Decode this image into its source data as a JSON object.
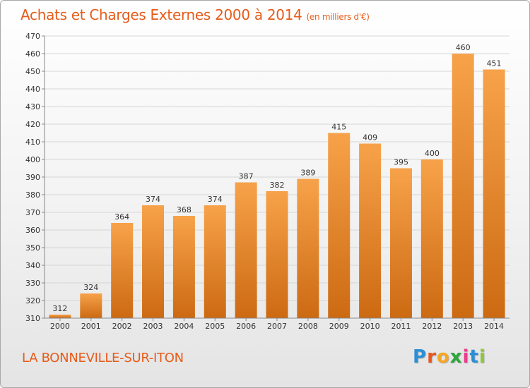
{
  "title": "Achats et Charges Externes 2000 à 2014",
  "subtitle": "(en milliers d'€)",
  "commune": "LA BONNEVILLE-SUR-ITON",
  "logo": {
    "letters": [
      "P",
      "r",
      "o",
      "x",
      "i",
      "t",
      "i"
    ],
    "colors": [
      "#2a8fd6",
      "#e8571e",
      "#f5a623",
      "#2aa63a",
      "#e83e8c",
      "#2a8fd6",
      "#8dc63f"
    ]
  },
  "colors": {
    "title": "#e65c1a",
    "bar_top": "#f7a24a",
    "bar_bottom": "#cc6a12",
    "grid": "#d6d6d6"
  },
  "chart_data": {
    "type": "bar",
    "categories": [
      "2000",
      "2001",
      "2002",
      "2003",
      "2004",
      "2005",
      "2006",
      "2007",
      "2008",
      "2009",
      "2010",
      "2011",
      "2012",
      "2013",
      "2014"
    ],
    "values": [
      312,
      324,
      364,
      374,
      368,
      374,
      387,
      382,
      389,
      415,
      409,
      395,
      400,
      460,
      451
    ],
    "ylim": [
      310,
      470
    ],
    "yticks": [
      310,
      320,
      330,
      340,
      350,
      360,
      370,
      380,
      390,
      400,
      410,
      420,
      430,
      440,
      450,
      460,
      470
    ],
    "grid": true,
    "legend": false
  }
}
